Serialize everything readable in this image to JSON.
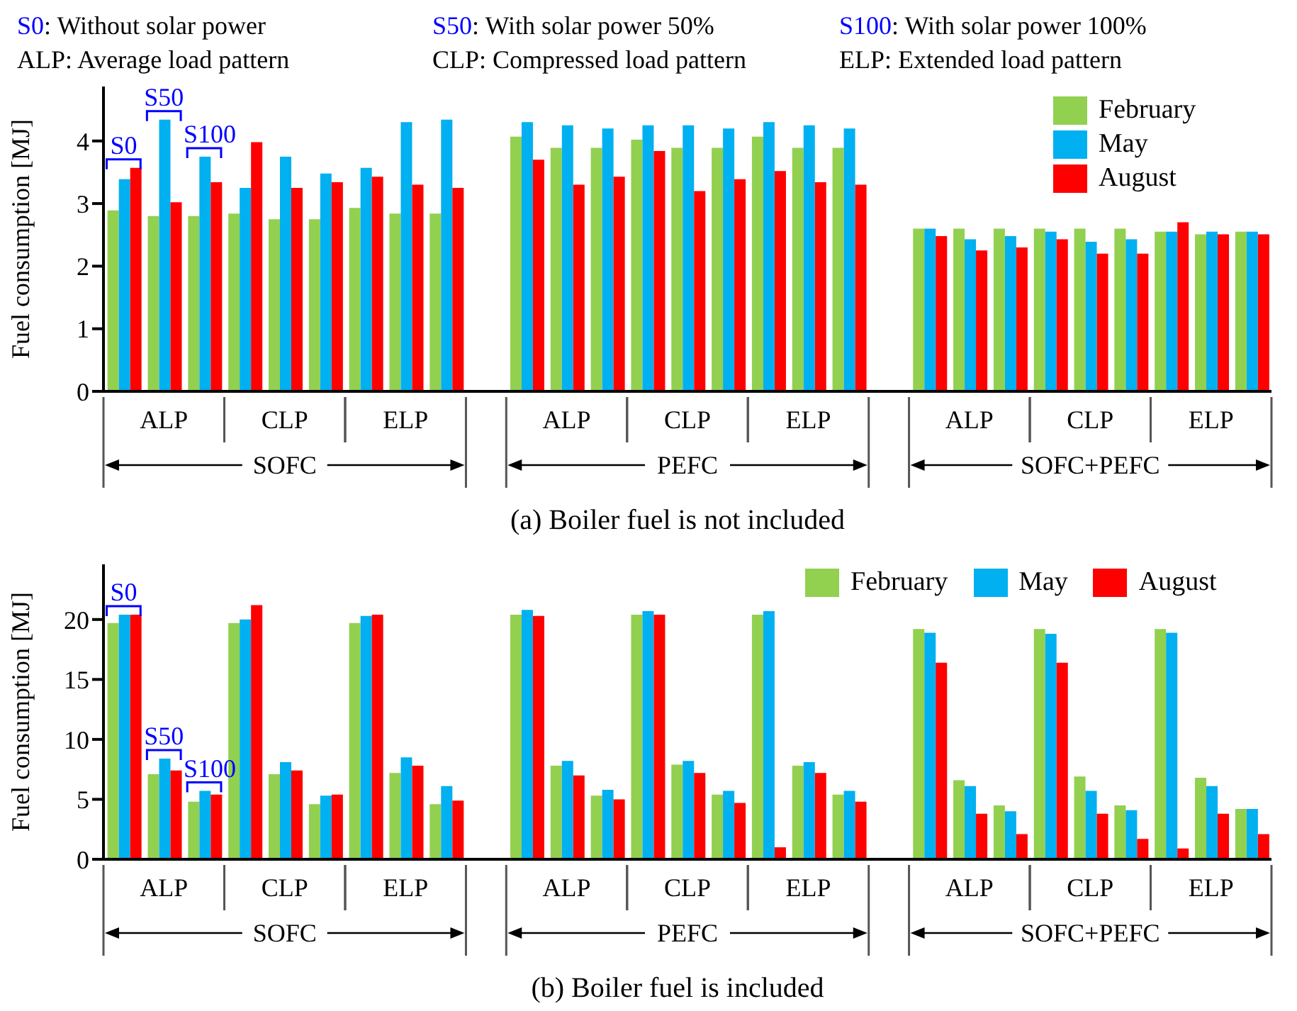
{
  "chart_data": [
    {
      "type": "bar",
      "title": "(a) Boiler fuel is not included",
      "ylabel": "Fuel consumption  [MJ]",
      "categories": [
        null,
        null,
        null,
        null,
        null,
        null,
        null,
        null,
        null,
        null,
        null,
        null,
        null,
        null,
        null,
        null,
        null,
        null,
        null,
        null,
        null,
        null,
        null,
        null,
        null,
        null,
        null,
        null,
        null
      ],
      "series": [
        {
          "name": "February",
          "color": "#92d050",
          "values": [
            2.89,
            2.8,
            2.8,
            2.84,
            2.75,
            2.75,
            2.93,
            2.84,
            2.84,
            null,
            4.07,
            3.89,
            3.89,
            4.02,
            3.89,
            3.89,
            4.07,
            3.89,
            3.89,
            null,
            2.6,
            2.6,
            2.6,
            2.6,
            2.6,
            2.6,
            2.55,
            2.51,
            2.55
          ]
        },
        {
          "name": "May",
          "color": "#00b0f0",
          "values": [
            3.39,
            4.34,
            3.75,
            3.25,
            3.75,
            3.48,
            3.57,
            4.3,
            4.34,
            null,
            4.3,
            4.25,
            4.2,
            4.25,
            4.25,
            4.2,
            4.3,
            4.25,
            4.2,
            null,
            2.6,
            2.43,
            2.48,
            2.55,
            2.39,
            2.43,
            2.55,
            2.55,
            2.55
          ]
        },
        {
          "name": "August",
          "color": "#ff0000",
          "values": [
            3.57,
            3.02,
            3.34,
            3.98,
            3.25,
            3.34,
            3.43,
            3.3,
            3.25,
            null,
            3.7,
            3.3,
            3.43,
            3.84,
            3.2,
            3.39,
            3.52,
            3.34,
            3.3,
            null,
            2.48,
            2.25,
            2.3,
            2.43,
            2.2,
            2.2,
            2.7,
            2.51,
            2.51
          ]
        }
      ],
      "ylim": [
        0,
        4.87
      ],
      "yticks": [
        0,
        1,
        2,
        3,
        4
      ],
      "legend": "top right",
      "annotations": [
        "S0",
        "S50",
        "S100",
        "ALP",
        "CLP",
        "ELP",
        "ALP",
        "CLP",
        "ELP",
        "ALP",
        "CLP",
        "ELP",
        "SOFC",
        "PEFC",
        "SOFC+PEFC",
        "S0",
        ": Without solar power",
        "S50",
        ": With solar power 50%",
        "S100",
        ": With solar power 100%",
        "ALP: Average load pattern",
        "CLP: Compressed load pattern",
        "ELP: Extended load pattern"
      ]
    },
    {
      "type": "bar",
      "title": "(b) Boiler fuel is included",
      "ylabel": "Fuel consumption  [MJ]",
      "categories": [
        null,
        null,
        null,
        null,
        null,
        null,
        null,
        null,
        null,
        null,
        null,
        null,
        null,
        null,
        null,
        null,
        null,
        null,
        null,
        null,
        null,
        null,
        null,
        null,
        null,
        null,
        null,
        null,
        null
      ],
      "series": [
        {
          "name": "February",
          "color": "#92d050",
          "values": [
            19.7,
            7.1,
            4.8,
            19.7,
            7.1,
            4.6,
            19.7,
            7.2,
            4.6,
            null,
            20.4,
            7.8,
            5.3,
            20.4,
            7.9,
            5.4,
            20.4,
            7.8,
            5.4,
            null,
            19.2,
            6.6,
            4.5,
            19.2,
            6.9,
            4.5,
            19.2,
            6.8,
            4.2
          ]
        },
        {
          "name": "May",
          "color": "#00b0f0",
          "values": [
            20.4,
            8.4,
            5.7,
            20.0,
            8.1,
            5.3,
            20.3,
            8.5,
            6.1,
            null,
            20.8,
            8.2,
            5.8,
            20.7,
            8.2,
            5.7,
            20.7,
            8.1,
            5.7,
            null,
            18.9,
            6.1,
            4.0,
            18.8,
            5.7,
            4.1,
            18.9,
            6.1,
            4.2
          ]
        },
        {
          "name": "August",
          "color": "#ff0000",
          "values": [
            20.4,
            7.4,
            5.4,
            21.2,
            7.4,
            5.4,
            20.4,
            7.8,
            4.9,
            null,
            20.3,
            7.0,
            5.0,
            20.4,
            7.2,
            4.7,
            1.0,
            7.2,
            4.8,
            null,
            16.4,
            3.8,
            2.1,
            16.4,
            3.8,
            1.7,
            0.9,
            3.8,
            2.1
          ]
        }
      ],
      "ylim": [
        0,
        24.6
      ],
      "yticks": [
        0,
        5,
        10,
        15,
        20
      ],
      "legend": "top",
      "annotations": [
        "S0",
        "S50",
        "S100",
        "ALP",
        "CLP",
        "ELP",
        "ALP",
        "CLP",
        "ELP",
        "ALP",
        "CLP",
        "ELP",
        "SOFC",
        "PEFC",
        "SOFC+PEFC"
      ]
    }
  ]
}
